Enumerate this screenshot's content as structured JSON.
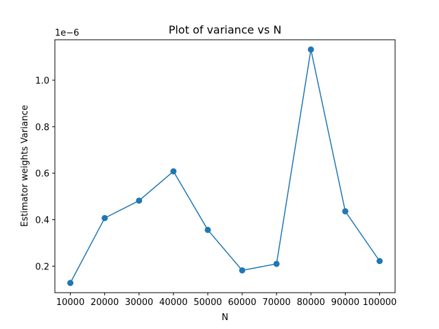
{
  "chart_data": {
    "type": "line",
    "title": "Plot of variance vs N",
    "xlabel": "N",
    "ylabel": "Estimator weights Variance",
    "y_offset_label": "1e−6",
    "marker": "circle",
    "color": "#1f77b4",
    "grid": false,
    "x": [
      10000,
      20000,
      30000,
      40000,
      50000,
      60000,
      70000,
      80000,
      90000,
      100000
    ],
    "series": [
      {
        "values": [
          1.28e-07,
          4.07e-07,
          4.82e-07,
          6.08e-07,
          3.56e-07,
          1.82e-07,
          2.1e-07,
          1.132e-06,
          4.36e-07,
          2.22e-07
        ]
      }
    ],
    "x_ticks": [
      "10000",
      "20000",
      "30000",
      "40000",
      "50000",
      "60000",
      "70000",
      "80000",
      "90000",
      "100000"
    ],
    "y_ticks": [
      "0.2",
      "0.4",
      "0.6",
      "0.8",
      "1.0"
    ],
    "y_tick_values": [
      2e-07,
      4e-07,
      6e-07,
      8e-07,
      1e-06
    ],
    "xlim": [
      5500,
      104500
    ],
    "ylim": [
      8.6e-08,
      1.174e-06
    ]
  }
}
